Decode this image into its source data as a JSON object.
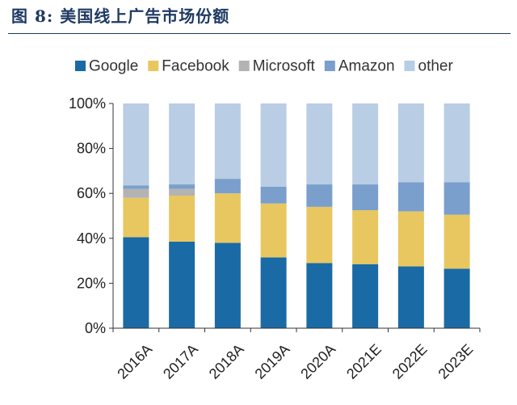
{
  "figure": {
    "title": "图 8: 美国线上广告市场份额"
  },
  "chart_data": {
    "type": "bar",
    "stacked": true,
    "percent": true,
    "title": "",
    "xlabel": "",
    "ylabel": "",
    "ylim": [
      0,
      100
    ],
    "yticks": [
      "0%",
      "20%",
      "40%",
      "60%",
      "80%",
      "100%"
    ],
    "categories": [
      "2016A",
      "2017A",
      "2018A",
      "2019A",
      "2020A",
      "2021E",
      "2022E",
      "2023E"
    ],
    "legend_position": "top",
    "series": [
      {
        "name": "Google",
        "color": "#1a6aa5",
        "values": [
          40.5,
          38.5,
          38,
          31.5,
          29,
          28.5,
          27.5,
          26.5
        ]
      },
      {
        "name": "Facebook",
        "color": "#e8c760",
        "values": [
          17.5,
          20.5,
          22,
          24,
          25,
          24,
          24.5,
          24
        ]
      },
      {
        "name": "Microsoft",
        "color": "#b3b3b3",
        "values": [
          4,
          3,
          0,
          0,
          0,
          0,
          0,
          0
        ]
      },
      {
        "name": "Amazon",
        "color": "#7a9fcc",
        "values": [
          1.5,
          2,
          6.5,
          7.5,
          10,
          11.5,
          13,
          14.5
        ]
      },
      {
        "name": "other",
        "color": "#b9cde4",
        "values": [
          36.5,
          36,
          33.5,
          37,
          36,
          36,
          35,
          35
        ]
      }
    ]
  }
}
